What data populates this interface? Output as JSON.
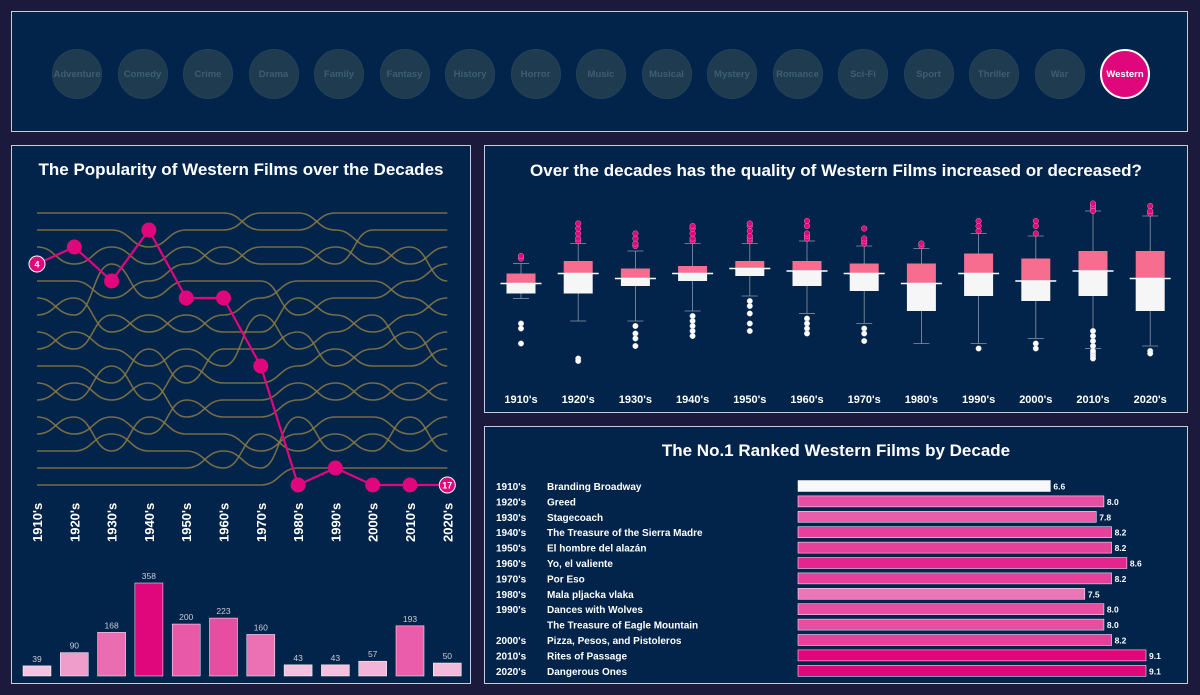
{
  "genres": [
    {
      "label": "Adventure",
      "selected": false
    },
    {
      "label": "Comedy",
      "selected": false
    },
    {
      "label": "Crime",
      "selected": false
    },
    {
      "label": "Drama",
      "selected": false
    },
    {
      "label": "Family",
      "selected": false
    },
    {
      "label": "Fantasy",
      "selected": false
    },
    {
      "label": "History",
      "selected": false
    },
    {
      "label": "Horror",
      "selected": false
    },
    {
      "label": "Music",
      "selected": false
    },
    {
      "label": "Musical",
      "selected": false
    },
    {
      "label": "Mystery",
      "selected": false
    },
    {
      "label": "Romance",
      "selected": false
    },
    {
      "label": "Sci-Fi",
      "selected": false
    },
    {
      "label": "Sport",
      "selected": false
    },
    {
      "label": "Thriller",
      "selected": false
    },
    {
      "label": "War",
      "selected": false
    },
    {
      "label": "Western",
      "selected": true
    }
  ],
  "colors": {
    "accent": "#e0077d",
    "other_lines": "#8a7a45",
    "panel": "#02244a",
    "box_upper": "#f66d8f",
    "box_lower": "#f6f6f6"
  },
  "chart_data": [
    {
      "type": "line",
      "title": "The Popularity of Western Films over the Decades",
      "x": [
        "1910's",
        "1920's",
        "1930's",
        "1940's",
        "1950's",
        "1960's",
        "1970's",
        "1980's",
        "1990's",
        "2000's",
        "2010's",
        "2020's"
      ],
      "series": [
        {
          "name": "Western",
          "values": [
            4,
            3,
            5,
            2,
            6,
            6,
            10,
            17,
            16,
            17,
            17,
            17
          ]
        }
      ],
      "end_labels": {
        "start": "4",
        "end": "17"
      },
      "y_reversed": true,
      "rank_range": [
        1,
        17
      ]
    },
    {
      "type": "bar",
      "categories": [
        "1910's",
        "1920's",
        "1930's",
        "1940's",
        "1950's",
        "1960's",
        "1970's",
        "1980's",
        "1990's",
        "2000's",
        "2010's",
        "2020's"
      ],
      "values": [
        39,
        90,
        168,
        358,
        200,
        223,
        160,
        43,
        43,
        57,
        193,
        50
      ],
      "value_labels": [
        "39",
        "90",
        "168",
        "358",
        "200",
        "223",
        "160",
        "43",
        "43",
        "57",
        "193",
        "50"
      ]
    },
    {
      "type": "box",
      "title": "Over the decades has the quality of Western Films increased or decreased?",
      "categories": [
        "1910's",
        "1920's",
        "1930's",
        "1940's",
        "1950's",
        "1960's",
        "1970's",
        "1980's",
        "1990's",
        "2000's",
        "2010's",
        "2020's"
      ],
      "boxes": [
        {
          "q1": 5.6,
          "median": 6.0,
          "q3": 6.4,
          "whisker_low": 5.4,
          "whisker_high": 6.8
        },
        {
          "q1": 5.6,
          "median": 6.4,
          "q3": 6.9,
          "whisker_low": 4.5,
          "whisker_high": 7.6
        },
        {
          "q1": 5.9,
          "median": 6.2,
          "q3": 6.6,
          "whisker_low": 4.5,
          "whisker_high": 7.3
        },
        {
          "q1": 6.1,
          "median": 6.4,
          "q3": 6.7,
          "whisker_low": 4.9,
          "whisker_high": 7.6
        },
        {
          "q1": 6.3,
          "median": 6.6,
          "q3": 6.9,
          "whisker_low": 5.5,
          "whisker_high": 7.6
        },
        {
          "q1": 5.9,
          "median": 6.5,
          "q3": 6.9,
          "whisker_low": 4.8,
          "whisker_high": 7.7
        },
        {
          "q1": 5.7,
          "median": 6.4,
          "q3": 6.8,
          "whisker_low": 4.4,
          "whisker_high": 7.5
        },
        {
          "q1": 4.9,
          "median": 6.0,
          "q3": 6.8,
          "whisker_low": 3.6,
          "whisker_high": 7.4
        },
        {
          "q1": 5.5,
          "median": 6.4,
          "q3": 7.2,
          "whisker_low": 3.6,
          "whisker_high": 8.0
        },
        {
          "q1": 5.3,
          "median": 6.1,
          "q3": 7.0,
          "whisker_low": 3.8,
          "whisker_high": 7.9
        },
        {
          "q1": 5.5,
          "median": 6.5,
          "q3": 7.3,
          "whisker_low": 3.4,
          "whisker_high": 8.9
        },
        {
          "q1": 4.9,
          "median": 6.2,
          "q3": 7.3,
          "whisker_low": 3.5,
          "whisker_high": 8.7
        }
      ],
      "outliers": [
        [
          7.0,
          7.1,
          4.4,
          4.2,
          3.6
        ],
        [
          7.7,
          7.8,
          8.0,
          8.2,
          8.4,
          3.0,
          2.9
        ],
        [
          7.5,
          7.6,
          7.8,
          8.0,
          4.3,
          4.0,
          3.8,
          3.5
        ],
        [
          7.7,
          7.8,
          8.0,
          8.2,
          8.3,
          4.7,
          4.5,
          4.3,
          4.1,
          3.9
        ],
        [
          7.7,
          7.8,
          7.9,
          8.1,
          8.3,
          8.4,
          5.3,
          5.1,
          4.8,
          4.4,
          4.1
        ],
        [
          7.8,
          7.9,
          8.0,
          8.3,
          8.5,
          4.6,
          4.4,
          4.2,
          4.0
        ],
        [
          7.6,
          7.7,
          7.8,
          8.2,
          4.2,
          4.0,
          3.7
        ],
        [
          7.5,
          7.6
        ],
        [
          8.1,
          8.3,
          8.5,
          3.4
        ],
        [
          8.0,
          8.3,
          8.5,
          3.6,
          3.4
        ],
        [
          9.0,
          9.1,
          8.9,
          9.2,
          3.2,
          3.1,
          3.0,
          3.3,
          3.5,
          3.7,
          3.9,
          4.1
        ],
        [
          8.8,
          8.9,
          9.1,
          3.3,
          3.2
        ]
      ],
      "ylim": [
        2.5,
        9.5
      ]
    },
    {
      "type": "bar",
      "orientation": "horizontal",
      "title": "The No.1 Ranked Western Films by Decade",
      "rows": [
        {
          "decade": "1910's",
          "film": "Branding Broadway",
          "rating": 6.6,
          "label": "6.6"
        },
        {
          "decade": "1920's",
          "film": "Greed",
          "rating": 8.0,
          "label": "8.0"
        },
        {
          "decade": "1930's",
          "film": "Stagecoach",
          "rating": 7.8,
          "label": "7.8"
        },
        {
          "decade": "1940's",
          "film": "The Treasure of the Sierra Madre",
          "rating": 8.2,
          "label": "8.2"
        },
        {
          "decade": "1950's",
          "film": "El hombre del alazán",
          "rating": 8.2,
          "label": "8.2"
        },
        {
          "decade": "1960's",
          "film": "Yo, el valiente",
          "rating": 8.6,
          "label": "8.6"
        },
        {
          "decade": "1970's",
          "film": "Por Eso",
          "rating": 8.2,
          "label": "8.2"
        },
        {
          "decade": "1980's",
          "film": "Mala pljacka vlaka",
          "rating": 7.5,
          "label": "7.5"
        },
        {
          "decade": "1990's",
          "film": "Dances with Wolves",
          "rating": 8.0,
          "label": "8.0"
        },
        {
          "decade": "",
          "film": "The Treasure of Eagle Mountain",
          "rating": 8.0,
          "label": "8.0"
        },
        {
          "decade": "2000's",
          "film": "Pizza, Pesos, and Pistoleros",
          "rating": 8.2,
          "label": "8.2"
        },
        {
          "decade": "2010's",
          "film": "Rites of Passage",
          "rating": 9.1,
          "label": "9.1"
        },
        {
          "decade": "2020's",
          "film": "Dangerous Ones",
          "rating": 9.1,
          "label": "9.1"
        }
      ],
      "xlim": [
        0,
        9.1
      ]
    }
  ]
}
